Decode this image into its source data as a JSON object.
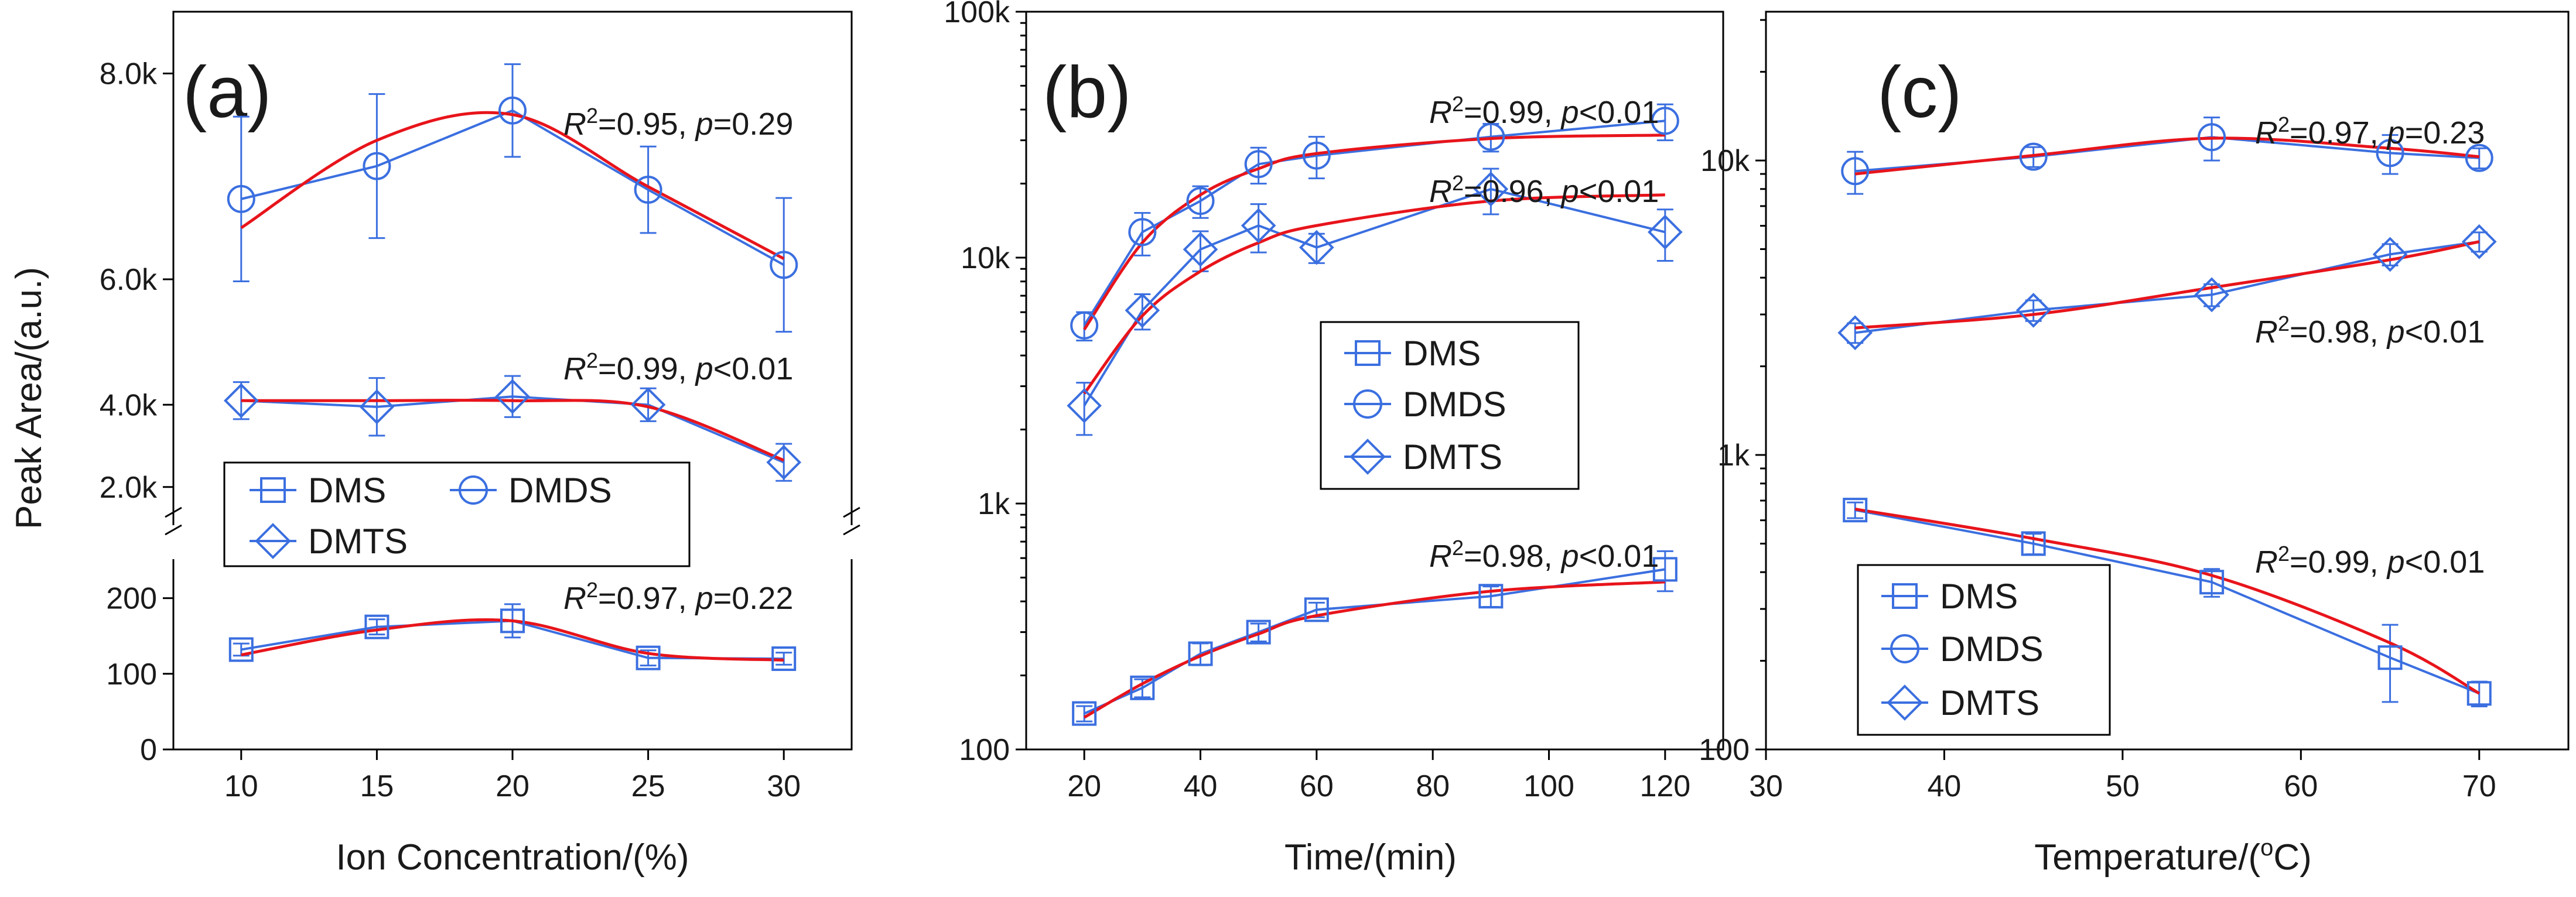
{
  "colors": {
    "data": "#3b6fe0",
    "fit": "#e8141b",
    "axis": "#000000"
  },
  "y_axis_shared_label": "Peak Area/(a.u.)",
  "legend_labels": [
    "DMS",
    "DMDS",
    "DMTS"
  ],
  "chart_data": [
    {
      "panel": "a",
      "panel_label": "(a)",
      "type": "line",
      "xlabel": "Ion Concentration/(%)",
      "ylabel": "Peak Area/(a.u.)",
      "xlim": [
        7.5,
        32.5
      ],
      "x_ticks": [
        "10",
        "15",
        "20",
        "25",
        "30"
      ],
      "y_scale": "broken-linear",
      "y_segments": [
        {
          "ylim": [
            0,
            250
          ],
          "ticks": [
            "0",
            "100",
            "200"
          ]
        },
        {
          "ylim": [
            1100,
            5300
          ],
          "ticks": [
            "2.0k",
            "4.0k"
          ]
        },
        {
          "ylim": [
            5300,
            8600
          ],
          "ticks": [
            "6.0k",
            "8.0k"
          ]
        }
      ],
      "x": [
        10,
        15,
        20,
        25,
        30
      ],
      "series": [
        {
          "name": "DMS",
          "marker": "square",
          "values": [
            132,
            162,
            170,
            121,
            120
          ],
          "errors": [
            8,
            10,
            22,
            10,
            8
          ],
          "fit": [
            125,
            158,
            170,
            127,
            118
          ],
          "annotation": {
            "r2": "0.97",
            "p_text": "=0.22"
          }
        },
        {
          "name": "DMDS",
          "marker": "circle",
          "values": [
            6780,
            7100,
            7640,
            6870,
            6140
          ],
          "errors": [
            800,
            700,
            450,
            420,
            650
          ],
          "fit": [
            6500,
            7350,
            7600,
            6900,
            6200
          ],
          "annotation": {
            "r2": "0.95",
            "p_text": "=0.29"
          }
        },
        {
          "name": "DMTS",
          "marker": "diamond",
          "values": [
            4100,
            3950,
            4200,
            4000,
            2600
          ],
          "errors": [
            450,
            700,
            500,
            400,
            450
          ],
          "fit": [
            4100,
            4100,
            4100,
            3950,
            2650
          ],
          "annotation": {
            "r2": "0.99",
            "p_text": "<0.01"
          }
        }
      ],
      "legend": {
        "placement": "center-left",
        "entries": [
          "DMS",
          "DMDS",
          "DMTS"
        ]
      }
    },
    {
      "panel": "b",
      "panel_label": "(b)",
      "type": "line",
      "xlabel": "Time/(min)",
      "ylabel": "",
      "xlim": [
        10,
        130
      ],
      "x_ticks": [
        "20",
        "40",
        "60",
        "80",
        "100",
        "120"
      ],
      "y_scale": "log",
      "ylim": [
        100,
        100000
      ],
      "y_ticks": [
        "100",
        "1k",
        "10k",
        "100k"
      ],
      "x": [
        20,
        30,
        40,
        50,
        60,
        90,
        120
      ],
      "series": [
        {
          "name": "DMS",
          "marker": "square",
          "values": [
            140,
            178,
            245,
            300,
            370,
            420,
            540
          ],
          "errors": [
            10,
            15,
            25,
            25,
            25,
            40,
            100
          ],
          "fit": [
            135,
            185,
            240,
            295,
            350,
            440,
            480
          ],
          "annotation": {
            "r2": "0.98",
            "p_text": "<0.01"
          }
        },
        {
          "name": "DMDS",
          "marker": "circle",
          "values": [
            5300,
            12700,
            17000,
            24000,
            26000,
            31000,
            36000
          ],
          "errors": [
            700,
            2500,
            2500,
            4000,
            5000,
            4000,
            6000
          ],
          "fit": [
            5100,
            11500,
            18000,
            23000,
            26500,
            30500,
            31500
          ],
          "annotation": {
            "r2": "0.99",
            "p_text": "<0.01"
          }
        },
        {
          "name": "DMTS",
          "marker": "diamond",
          "values": [
            2500,
            6100,
            10800,
            13500,
            11000,
            19000,
            12700
          ],
          "errors": [
            600,
            1000,
            2000,
            3000,
            1500,
            4000,
            3000
          ],
          "fit": [
            2800,
            5800,
            8800,
            11500,
            13500,
            17000,
            18000
          ],
          "annotation": {
            "r2": "0.96",
            "p_text": "<0.01"
          }
        }
      ],
      "legend": {
        "placement": "center-right",
        "entries": [
          "DMS",
          "DMDS",
          "DMTS"
        ]
      }
    },
    {
      "panel": "c",
      "panel_label": "(c)",
      "type": "line",
      "xlabel": "Temperature/(°C)",
      "xlabel_parts": [
        "Temperature/(",
        "o",
        "C)"
      ],
      "ylabel": "",
      "xlim": [
        30,
        75
      ],
      "x_ticks": [
        "30",
        "40",
        "50",
        "60",
        "70"
      ],
      "y_scale": "log",
      "ylim": [
        100,
        32000
      ],
      "y_ticks": [
        "100",
        "1k",
        "10k"
      ],
      "x": [
        35,
        45,
        55,
        65,
        70
      ],
      "series": [
        {
          "name": "DMS",
          "marker": "square",
          "values": [
            650,
            500,
            370,
            205,
            155
          ],
          "errors": [
            40,
            40,
            40,
            60,
            15
          ],
          "fit": [
            655,
            520,
            390,
            230,
            155
          ],
          "annotation": {
            "r2": "0.99",
            "p_text": "<0.01"
          }
        },
        {
          "name": "DMDS",
          "marker": "circle",
          "values": [
            9200,
            10300,
            12000,
            10600,
            10200
          ],
          "errors": [
            1500,
            800,
            2000,
            1600,
            800
          ],
          "fit": [
            9000,
            10400,
            11900,
            11000,
            10300
          ],
          "annotation": {
            "r2": "0.97",
            "p_text": "=0.23"
          }
        },
        {
          "name": "DMTS",
          "marker": "diamond",
          "values": [
            2600,
            3100,
            3500,
            4800,
            5300
          ],
          "errors": [
            200,
            250,
            300,
            400,
            400
          ],
          "fit": [
            2700,
            3000,
            3700,
            4600,
            5300
          ],
          "annotation": {
            "r2": "0.98",
            "p_text": "<0.01"
          }
        }
      ],
      "legend": {
        "placement": "bottom-left",
        "entries": [
          "DMS",
          "DMDS",
          "DMTS"
        ]
      }
    }
  ]
}
